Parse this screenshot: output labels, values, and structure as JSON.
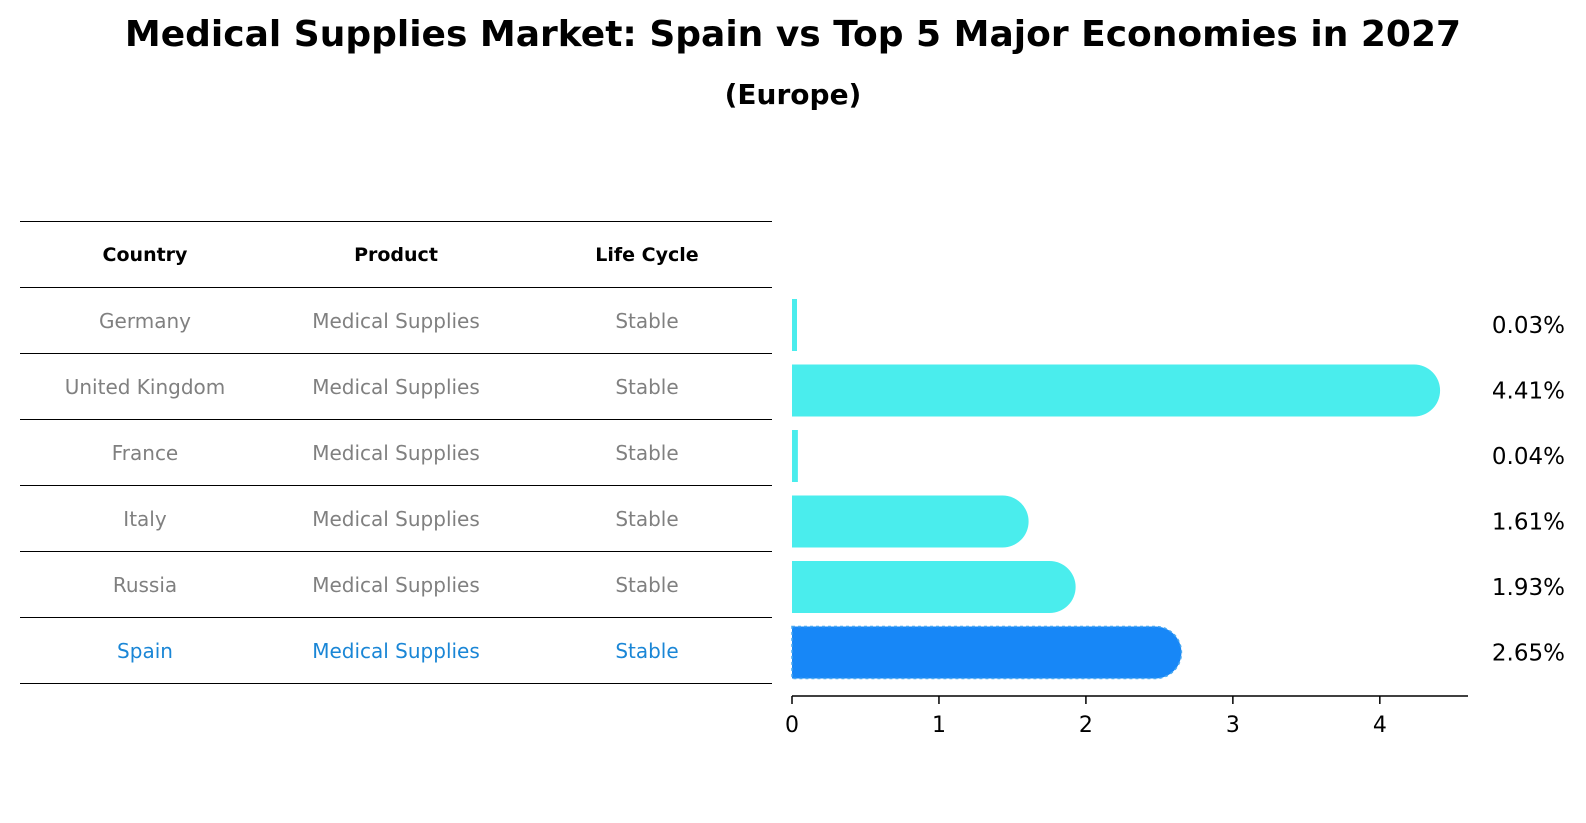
{
  "header": {
    "title": "Medical Supplies Market: Spain vs Top 5 Major Economies in 2027",
    "subtitle": "(Europe)"
  },
  "table": {
    "columns": [
      "Country",
      "Product",
      "Life Cycle"
    ],
    "rows": [
      {
        "country": "Germany",
        "product": "Medical Supplies",
        "life_cycle": "Stable"
      },
      {
        "country": "United Kingdom",
        "product": "Medical Supplies",
        "life_cycle": "Stable"
      },
      {
        "country": "France",
        "product": "Medical Supplies",
        "life_cycle": "Stable"
      },
      {
        "country": "Italy",
        "product": "Medical Supplies",
        "life_cycle": "Stable"
      },
      {
        "country": "Russia",
        "product": "Medical Supplies",
        "life_cycle": "Stable"
      },
      {
        "country": "Spain",
        "product": "Medical Supplies",
        "life_cycle": "Stable"
      }
    ],
    "highlight_country": "Spain"
  },
  "chart_data": {
    "type": "bar",
    "orientation": "horizontal",
    "categories": [
      "Germany",
      "United Kingdom",
      "France",
      "Italy",
      "Russia",
      "Spain"
    ],
    "values": [
      0.03,
      4.41,
      0.04,
      1.61,
      1.93,
      2.65
    ],
    "value_labels": [
      "0.03%",
      "4.41%",
      "0.04%",
      "1.61%",
      "1.93%",
      "2.65%"
    ],
    "highlight": "Spain",
    "xlim": [
      0,
      4.6
    ],
    "xticks": [
      0,
      1,
      2,
      3,
      4
    ],
    "xtick_labels": [
      "0",
      "1",
      "2",
      "3",
      "4"
    ],
    "colors": {
      "default": "#4aeded",
      "highlight": "#1787f7",
      "highlight_text": "#1a86d6",
      "muted_text": "#808080"
    }
  }
}
